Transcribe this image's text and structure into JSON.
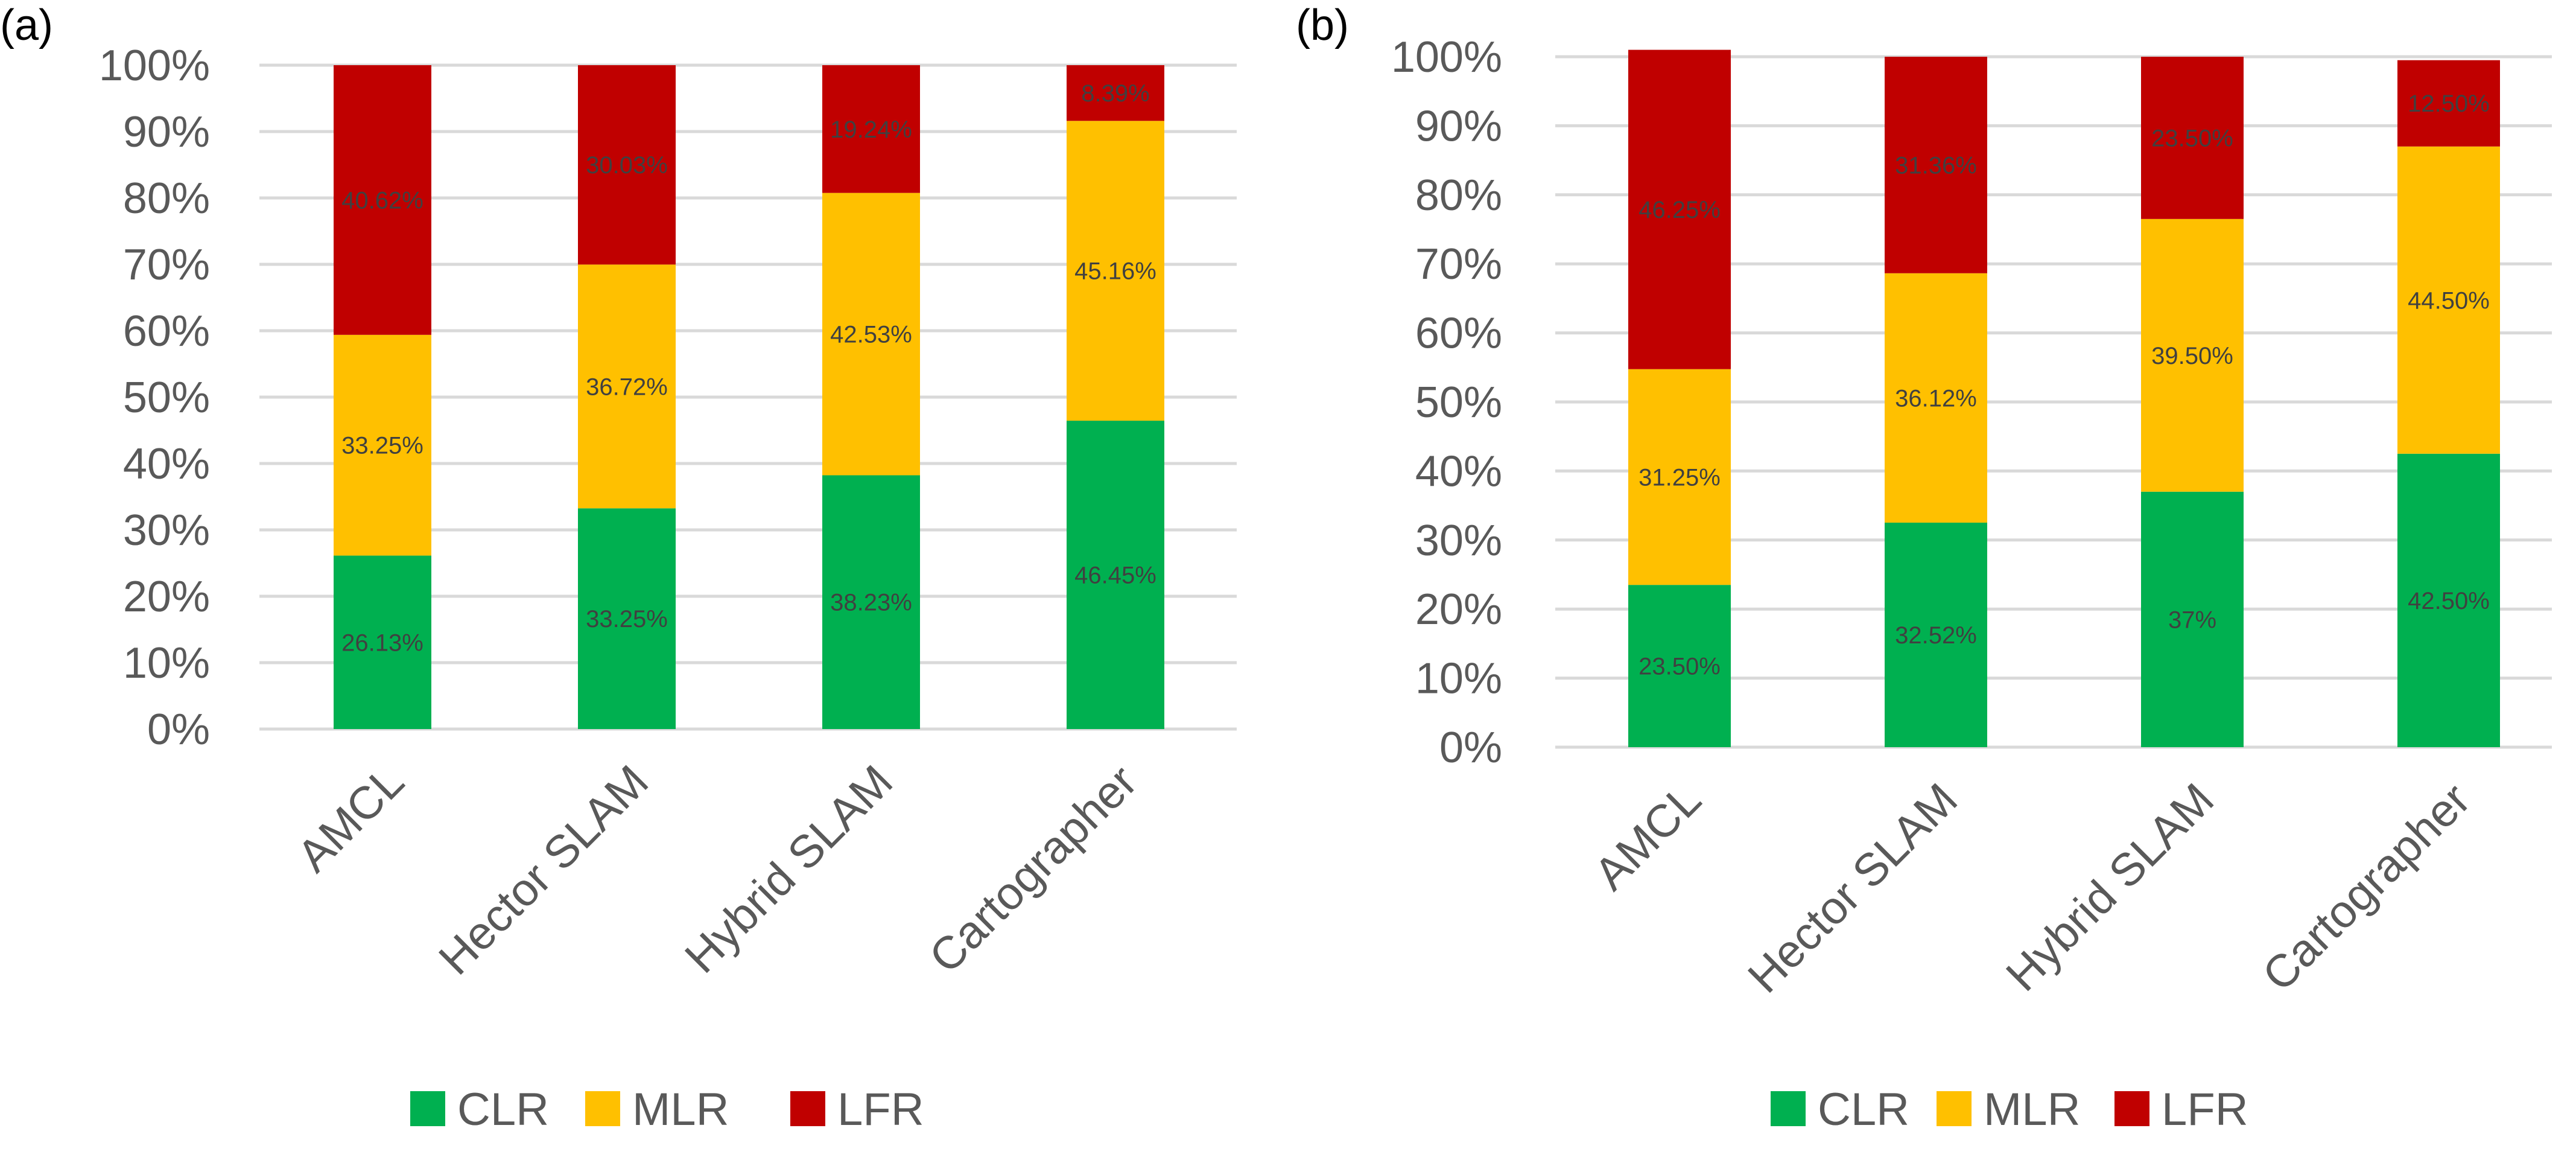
{
  "chart_data": [
    {
      "type": "bar",
      "stacked": true,
      "percent_stacked": true,
      "panel_label": "(a)",
      "categories": [
        "AMCL",
        "Hector SLAM",
        "Hybrid SLAM",
        "Cartographer"
      ],
      "series": [
        {
          "name": "CLR",
          "color": "#00b050",
          "values": [
            26.13,
            33.25,
            38.23,
            46.45
          ],
          "labels": [
            "26.13%",
            "33.25%",
            "38.23%",
            "46.45%"
          ]
        },
        {
          "name": "MLR",
          "color": "#ffc000",
          "values": [
            33.25,
            36.72,
            42.53,
            45.16
          ],
          "labels": [
            "33.25%",
            "36.72%",
            "42.53%",
            "45.16%"
          ]
        },
        {
          "name": "LFR",
          "color": "#c00000",
          "values": [
            40.62,
            30.03,
            19.24,
            8.39
          ],
          "labels": [
            "40.62%",
            "30.03%",
            "19.24%",
            "8.39%"
          ]
        }
      ],
      "yticks": [
        "0%",
        "10%",
        "20%",
        "30%",
        "40%",
        "50%",
        "60%",
        "70%",
        "80%",
        "90%",
        "100%"
      ],
      "ylim": [
        0,
        100
      ],
      "grid": true,
      "legend": "bottom"
    },
    {
      "type": "bar",
      "stacked": true,
      "percent_stacked": true,
      "panel_label": "(b)",
      "categories": [
        "AMCL",
        "Hector SLAM",
        "Hybrid SLAM",
        "Cartographer"
      ],
      "series": [
        {
          "name": "CLR",
          "color": "#00b050",
          "values": [
            23.5,
            32.52,
            37,
            42.5
          ],
          "labels": [
            "23.50%",
            "32.52%",
            "37%",
            "42.50%"
          ]
        },
        {
          "name": "MLR",
          "color": "#ffc000",
          "values": [
            31.25,
            36.12,
            39.5,
            44.5
          ],
          "labels": [
            "31.25%",
            "36.12%",
            "39.50%",
            "44.50%"
          ]
        },
        {
          "name": "LFR",
          "color": "#c00000",
          "values": [
            46.25,
            31.36,
            23.5,
            12.5
          ],
          "labels": [
            "46.25%",
            "31.36%",
            "23.50%",
            "12.50%"
          ]
        }
      ],
      "yticks": [
        "0%",
        "10%",
        "20%",
        "30%",
        "40%",
        "50%",
        "60%",
        "70%",
        "80%",
        "90%",
        "100%"
      ],
      "ylim": [
        0,
        100
      ],
      "grid": true,
      "legend": "bottom"
    }
  ]
}
